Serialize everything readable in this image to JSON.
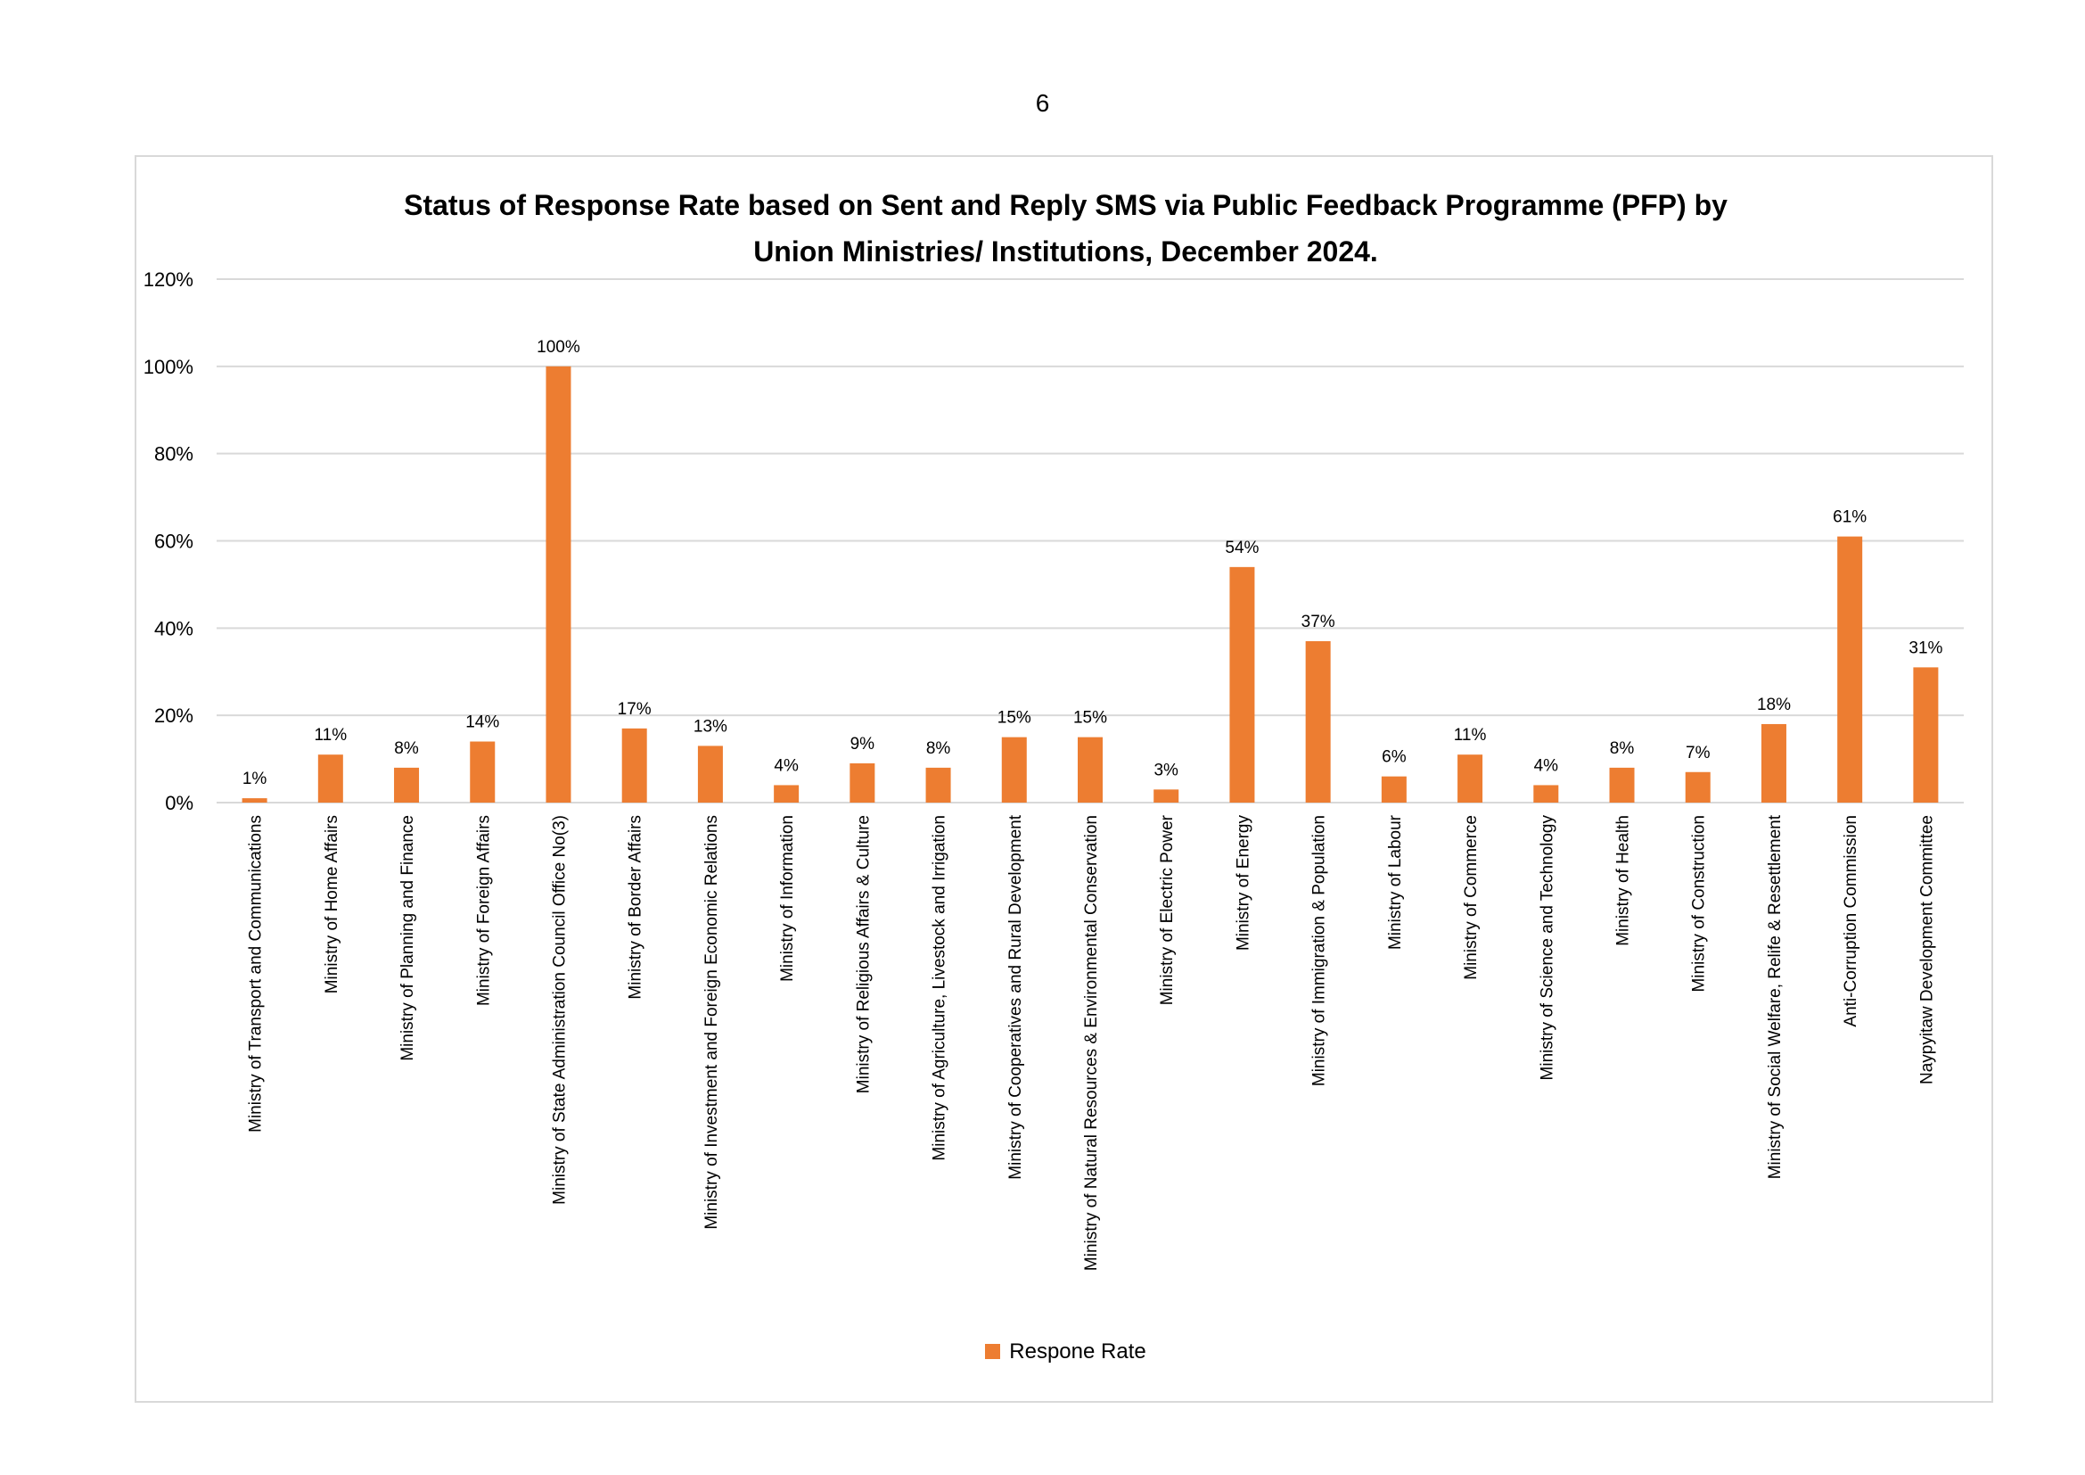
{
  "page": {
    "number": "6"
  },
  "colors": {
    "bar": "#ed7d31",
    "grid": "#d9d9d9",
    "frame": "#d9d9d9"
  },
  "chart_data": {
    "type": "bar",
    "title_lines": [
      "Status of Response Rate based on Sent and Reply SMS via Public Feedback Programme (PFP) by",
      "Union Ministries/ Institutions, December 2024."
    ],
    "xlabel": "",
    "ylabel": "",
    "ylim": [
      0,
      120
    ],
    "y_ticks": [
      0,
      20,
      40,
      60,
      80,
      100,
      120
    ],
    "y_tick_labels": [
      "0%",
      "20%",
      "40%",
      "60%",
      "80%",
      "100%",
      "120%"
    ],
    "grid": true,
    "legend_position": "bottom",
    "categories": [
      "Ministry of Transport and Communications",
      "Ministry of Home Affairs",
      "Ministry of Planning and Finance",
      "Ministry of Foreign Affairs",
      "Ministry of State Administration Council Office No(3)",
      "Ministry of Border Affairs",
      "Ministry of Investment and Foreign Economic Relations",
      "Ministry of Information",
      "Ministry of Religious Affairs & Culture",
      "Ministry of Agriculture, Livestock and Irrigation",
      "Ministry of Cooperatives and Rural Development",
      "Ministry of Natural Resources & Environmental Conservation",
      "Ministry of Electric Power",
      "Ministry of Energy",
      "Ministry of Immigration & Population",
      "Ministry of Labour",
      "Ministry of Commerce",
      "Ministry of Science and Technology",
      "Ministry of Health",
      "Ministry of Construction",
      "Ministry of Social Welfare, Relife & Resettlement",
      "Anti-Corruption Commission",
      "Naypyitaw Development Committee"
    ],
    "series": [
      {
        "name": "Respone Rate",
        "values": [
          1,
          11,
          8,
          14,
          100,
          17,
          13,
          4,
          9,
          8,
          15,
          15,
          3,
          54,
          37,
          6,
          11,
          4,
          8,
          7,
          18,
          61,
          31
        ],
        "data_labels": [
          "1%",
          "11%",
          "8%",
          "14%",
          "100%",
          "17%",
          "13%",
          "4%",
          "9%",
          "8%",
          "15%",
          "15%",
          "3%",
          "54%",
          "37%",
          "6%",
          "11%",
          "4%",
          "8%",
          "7%",
          "18%",
          "61%",
          "31%"
        ]
      }
    ]
  }
}
